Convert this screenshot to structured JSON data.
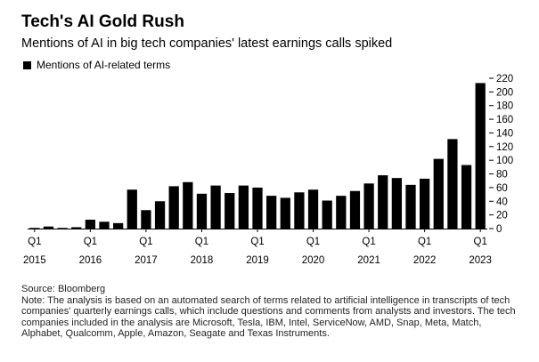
{
  "header": {
    "title": "Tech's AI Gold Rush",
    "subtitle": "Mentions of AI in big tech companies' latest earnings calls spiked"
  },
  "legend": {
    "label": "Mentions of AI-related terms"
  },
  "footer": {
    "source": "Source: Bloomberg",
    "note": "Note: The analysis is based on an automated search of terms related to artificial intelligence in transcripts of tech companies' quarterly earnings calls, which include questions and comments from analysts and investors. The tech companies included in the analysis are Microsoft, Tesla, IBM, Intel, ServiceNow, AMD, Snap, Meta, Match, Alphabet, Qualcomm, Apple, Amazon, Seagate and Texas Instruments."
  },
  "chart_data": {
    "type": "bar",
    "title": "Tech's AI Gold Rush",
    "subtitle": "Mentions of AI in big tech companies' latest earnings calls spiked",
    "xlabel": "",
    "ylabel": "",
    "ylim": [
      0,
      220
    ],
    "yticks": [
      0,
      20,
      40,
      60,
      80,
      100,
      120,
      140,
      160,
      180,
      200,
      220
    ],
    "grid": false,
    "legend_position": "top-left",
    "bar_color": "#000000",
    "x_tick_labels": [
      {
        "quarter": "Q1",
        "year": "2015",
        "index": 0
      },
      {
        "quarter": "Q1",
        "year": "2016",
        "index": 4
      },
      {
        "quarter": "Q1",
        "year": "2017",
        "index": 8
      },
      {
        "quarter": "Q1",
        "year": "2018",
        "index": 12
      },
      {
        "quarter": "Q1",
        "year": "2019",
        "index": 16
      },
      {
        "quarter": "Q1",
        "year": "2020",
        "index": 20
      },
      {
        "quarter": "Q1",
        "year": "2021",
        "index": 24
      },
      {
        "quarter": "Q1",
        "year": "2022",
        "index": 28
      },
      {
        "quarter": "Q1",
        "year": "2023",
        "index": 32
      }
    ],
    "series": [
      {
        "name": "Mentions of AI-related terms",
        "values": [
          1,
          3,
          1,
          2,
          13,
          10,
          8,
          57,
          27,
          40,
          62,
          68,
          51,
          63,
          52,
          63,
          60,
          48,
          45,
          53,
          57,
          41,
          48,
          55,
          66,
          78,
          74,
          64,
          73,
          102,
          131,
          93,
          213
        ]
      }
    ]
  }
}
